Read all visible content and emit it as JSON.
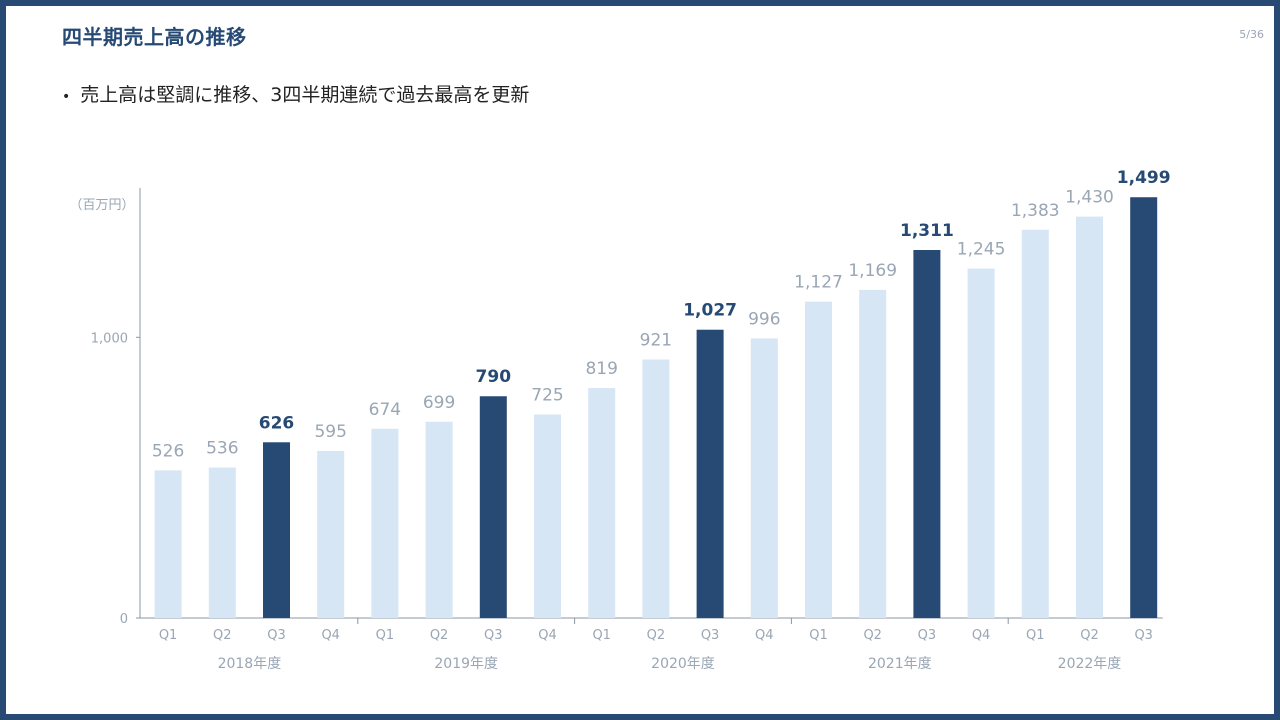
{
  "slide": {
    "title": "四半期売上高の推移",
    "page": "5/36",
    "bullet": "売上高は堅調に推移、3四半期連続で過去最高を更新"
  },
  "colors": {
    "highlight": "#264a74",
    "normal": "#d6e6f5",
    "frame": "#264a74",
    "label_normal": "#9aa6b4",
    "axis": "#8a97a6"
  },
  "chart_data": {
    "type": "bar",
    "unit_label": "（百万円）",
    "categories": [
      "Q1",
      "Q2",
      "Q3",
      "Q4",
      "Q1",
      "Q2",
      "Q3",
      "Q4",
      "Q1",
      "Q2",
      "Q3",
      "Q4",
      "Q1",
      "Q2",
      "Q3",
      "Q4",
      "Q1",
      "Q2",
      "Q3"
    ],
    "values": [
      526,
      536,
      626,
      595,
      674,
      699,
      790,
      725,
      819,
      921,
      1027,
      996,
      1127,
      1169,
      1311,
      1245,
      1383,
      1430,
      1499
    ],
    "value_labels": [
      "526",
      "536",
      "626",
      "595",
      "674",
      "699",
      "790",
      "725",
      "819",
      "921",
      "1,027",
      "996",
      "1,127",
      "1,169",
      "1,311",
      "1,245",
      "1,383",
      "1,430",
      "1,499"
    ],
    "highlighted": [
      false,
      false,
      true,
      false,
      false,
      false,
      true,
      false,
      false,
      false,
      true,
      false,
      false,
      false,
      true,
      false,
      false,
      false,
      true
    ],
    "groups": [
      {
        "label": "2018年度",
        "count": 4
      },
      {
        "label": "2019年度",
        "count": 4
      },
      {
        "label": "2020年度",
        "count": 4
      },
      {
        "label": "2021年度",
        "count": 4
      },
      {
        "label": "2022年度",
        "count": 3
      }
    ],
    "yticks": [
      {
        "value": 0,
        "label": "0"
      },
      {
        "value": 1000,
        "label": "1,000"
      }
    ],
    "ylim": [
      0,
      1499
    ],
    "grid": false,
    "legend": false
  }
}
